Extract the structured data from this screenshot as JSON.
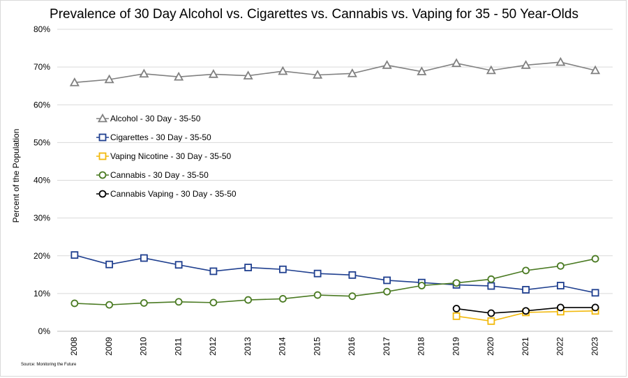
{
  "chart_data": {
    "type": "line",
    "title": "Prevalence of 30 Day Alcohol vs. Cigarettes vs. Cannabis vs. Vaping for 35 - 50 Year-Olds",
    "ylabel": "Percent of the Population",
    "xlabel": "",
    "ylim": [
      0,
      80
    ],
    "yticks": [
      "0%",
      "10%",
      "20%",
      "30%",
      "40%",
      "50%",
      "60%",
      "70%",
      "80%"
    ],
    "x": [
      "2008",
      "2009",
      "2010",
      "2011",
      "2012",
      "2013",
      "2014",
      "2015",
      "2016",
      "2017",
      "2018",
      "2019",
      "2020",
      "2021",
      "2022",
      "2023"
    ],
    "grid": true,
    "legend_position": "left-center",
    "series": [
      {
        "name": "Alcohol - 30 Day - 35-50",
        "color": "#808080",
        "marker": "triangle",
        "values": [
          65.9,
          66.7,
          68.2,
          67.4,
          68.1,
          67.7,
          68.9,
          67.9,
          68.3,
          70.5,
          68.8,
          71.0,
          69.1,
          70.5,
          71.3,
          69.1
        ]
      },
      {
        "name": "Cigarettes - 30 Day - 35-50",
        "color": "#1f3f8f",
        "marker": "square",
        "values": [
          20.2,
          17.7,
          19.4,
          17.6,
          15.9,
          16.9,
          16.4,
          15.3,
          14.9,
          13.5,
          12.9,
          12.3,
          12.0,
          11.0,
          12.1,
          10.2
        ]
      },
      {
        "name": "Vaping Nicotine - 30 Day - 35-50",
        "color": "#f2b90c",
        "marker": "square",
        "values": [
          null,
          null,
          null,
          null,
          null,
          null,
          null,
          null,
          null,
          null,
          null,
          4.0,
          2.7,
          5.0,
          5.2,
          5.4
        ]
      },
      {
        "name": "Cannabis - 30 Day - 35-50",
        "color": "#4a7a22",
        "marker": "circle",
        "values": [
          7.4,
          7.0,
          7.5,
          7.8,
          7.6,
          8.3,
          8.6,
          9.6,
          9.3,
          10.5,
          12.1,
          12.8,
          13.8,
          16.1,
          17.3,
          19.2
        ]
      },
      {
        "name": "Cannabis Vaping - 30 Day - 35-50",
        "color": "#000000",
        "marker": "circle",
        "values": [
          null,
          null,
          null,
          null,
          null,
          null,
          null,
          null,
          null,
          null,
          null,
          6.0,
          4.8,
          5.4,
          6.3,
          6.3
        ]
      }
    ]
  },
  "source": "Source: Monitoring the Future"
}
